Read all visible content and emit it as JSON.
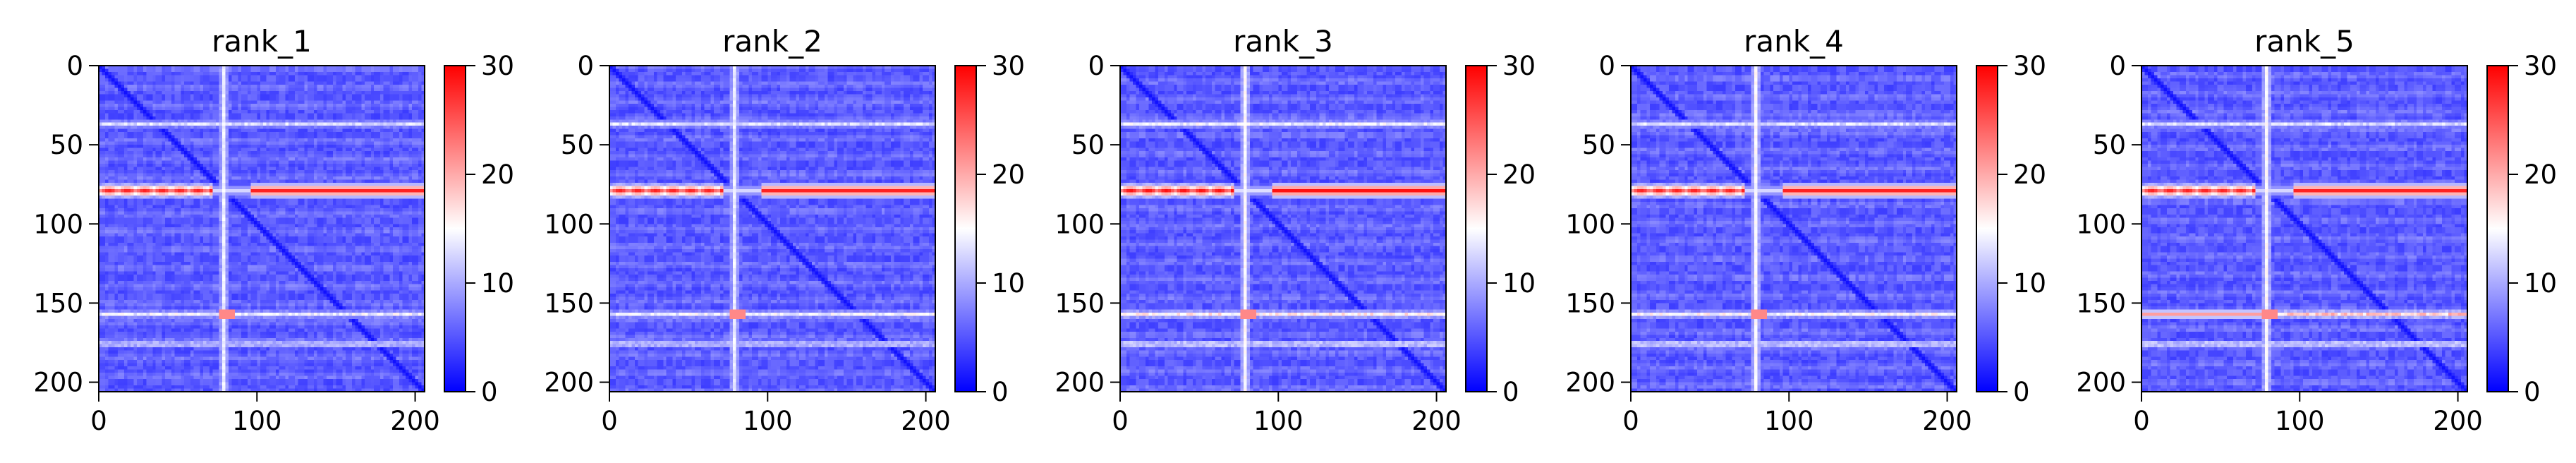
{
  "chart_data": [
    {
      "type": "heatmap",
      "title": "rank_1",
      "x_ticks": [
        0,
        100,
        200
      ],
      "y_ticks": [
        0,
        50,
        100,
        150,
        200
      ],
      "xlim": [
        0,
        206
      ],
      "ylim": [
        206,
        0
      ],
      "colormap": "bwr",
      "colors": {
        "low": "#0000ff",
        "mid": "#ffffff",
        "high": "#ff0000"
      },
      "color_range": [
        0,
        30
      ],
      "colorbar_ticks": [
        0,
        10,
        20,
        30
      ],
      "grid": false,
      "features": {
        "diagonal": "low values (dark blue) along i = j",
        "rows": [
          {
            "y": 78,
            "x_from": 0,
            "x_to": 206,
            "value": 28,
            "note": "strong red band, broken near x 70-95"
          },
          {
            "y": 156,
            "x_from": 0,
            "x_to": 206,
            "value": 14
          },
          {
            "y": 36,
            "x_from": 0,
            "x_to": 206,
            "value": 13
          },
          {
            "y": 175,
            "x_from": 0,
            "x_to": 206,
            "value": 13
          }
        ],
        "columns": [
          {
            "x": 78,
            "value": 13
          }
        ]
      }
    },
    {
      "type": "heatmap",
      "title": "rank_2",
      "x_ticks": [
        0,
        100,
        200
      ],
      "y_ticks": [
        0,
        50,
        100,
        150,
        200
      ],
      "xlim": [
        0,
        206
      ],
      "ylim": [
        206,
        0
      ],
      "colormap": "bwr",
      "colors": {
        "low": "#0000ff",
        "mid": "#ffffff",
        "high": "#ff0000"
      },
      "color_range": [
        0,
        30
      ],
      "colorbar_ticks": [
        0,
        10,
        20,
        30
      ],
      "grid": false,
      "features": {
        "diagonal": "low values (dark blue) along i = j",
        "rows": [
          {
            "y": 78,
            "x_from": 0,
            "x_to": 206,
            "value": 28,
            "note": "strong red band, broken near x 70-95"
          },
          {
            "y": 156,
            "x_from": 0,
            "x_to": 206,
            "value": 14
          },
          {
            "y": 36,
            "x_from": 0,
            "x_to": 206,
            "value": 13
          },
          {
            "y": 175,
            "x_from": 0,
            "x_to": 206,
            "value": 13
          }
        ],
        "columns": [
          {
            "x": 78,
            "value": 13
          }
        ]
      }
    },
    {
      "type": "heatmap",
      "title": "rank_3",
      "x_ticks": [
        0,
        100,
        200
      ],
      "y_ticks": [
        0,
        50,
        100,
        150,
        200
      ],
      "xlim": [
        0,
        206
      ],
      "ylim": [
        206,
        0
      ],
      "colormap": "bwr",
      "colors": {
        "low": "#0000ff",
        "mid": "#ffffff",
        "high": "#ff0000"
      },
      "color_range": [
        0,
        30
      ],
      "colorbar_ticks": [
        0,
        10,
        20,
        30
      ],
      "grid": false,
      "features": {
        "diagonal": "low values (dark blue) along i = j",
        "rows": [
          {
            "y": 78,
            "x_from": 0,
            "x_to": 206,
            "value": 29,
            "note": "strong red band, broken near x 70-95"
          },
          {
            "y": 156,
            "x_from": 0,
            "x_to": 206,
            "value": 16
          },
          {
            "y": 36,
            "x_from": 0,
            "x_to": 206,
            "value": 14
          },
          {
            "y": 175,
            "x_from": 0,
            "x_to": 206,
            "value": 14
          }
        ],
        "columns": [
          {
            "x": 78,
            "value": 14
          }
        ]
      }
    },
    {
      "type": "heatmap",
      "title": "rank_4",
      "x_ticks": [
        0,
        100,
        200
      ],
      "y_ticks": [
        0,
        50,
        100,
        150,
        200
      ],
      "xlim": [
        0,
        206
      ],
      "ylim": [
        206,
        0
      ],
      "colormap": "bwr",
      "colors": {
        "low": "#0000ff",
        "mid": "#ffffff",
        "high": "#ff0000"
      },
      "color_range": [
        0,
        30
      ],
      "colorbar_ticks": [
        0,
        10,
        20,
        30
      ],
      "grid": false,
      "features": {
        "diagonal": "low values (dark blue) along i = j",
        "rows": [
          {
            "y": 78,
            "x_from": 0,
            "x_to": 206,
            "value": 28,
            "note": "strong red band, broken near x 70-95"
          },
          {
            "y": 156,
            "x_from": 0,
            "x_to": 206,
            "value": 15
          },
          {
            "y": 36,
            "x_from": 0,
            "x_to": 206,
            "value": 13
          },
          {
            "y": 175,
            "x_from": 0,
            "x_to": 206,
            "value": 14
          }
        ],
        "columns": [
          {
            "x": 78,
            "value": 14
          }
        ]
      }
    },
    {
      "type": "heatmap",
      "title": "rank_5",
      "x_ticks": [
        0,
        100,
        200
      ],
      "y_ticks": [
        0,
        50,
        100,
        150,
        200
      ],
      "xlim": [
        0,
        206
      ],
      "ylim": [
        206,
        0
      ],
      "colormap": "bwr",
      "colors": {
        "low": "#0000ff",
        "mid": "#ffffff",
        "high": "#ff0000"
      },
      "color_range": [
        0,
        30
      ],
      "colorbar_ticks": [
        0,
        10,
        20,
        30
      ],
      "grid": false,
      "features": {
        "diagonal": "low values (dark blue) along i = j",
        "rows": [
          {
            "y": 78,
            "x_from": 0,
            "x_to": 206,
            "value": 28,
            "note": "strong red band, broken near x 70-95"
          },
          {
            "y": 156,
            "x_from": 0,
            "x_to": 206,
            "value": 18,
            "note": "reddish segment from x 0-80"
          },
          {
            "y": 36,
            "x_from": 0,
            "x_to": 206,
            "value": 13
          },
          {
            "y": 175,
            "x_from": 0,
            "x_to": 206,
            "value": 14
          }
        ],
        "columns": [
          {
            "x": 78,
            "value": 14
          }
        ]
      }
    }
  ]
}
